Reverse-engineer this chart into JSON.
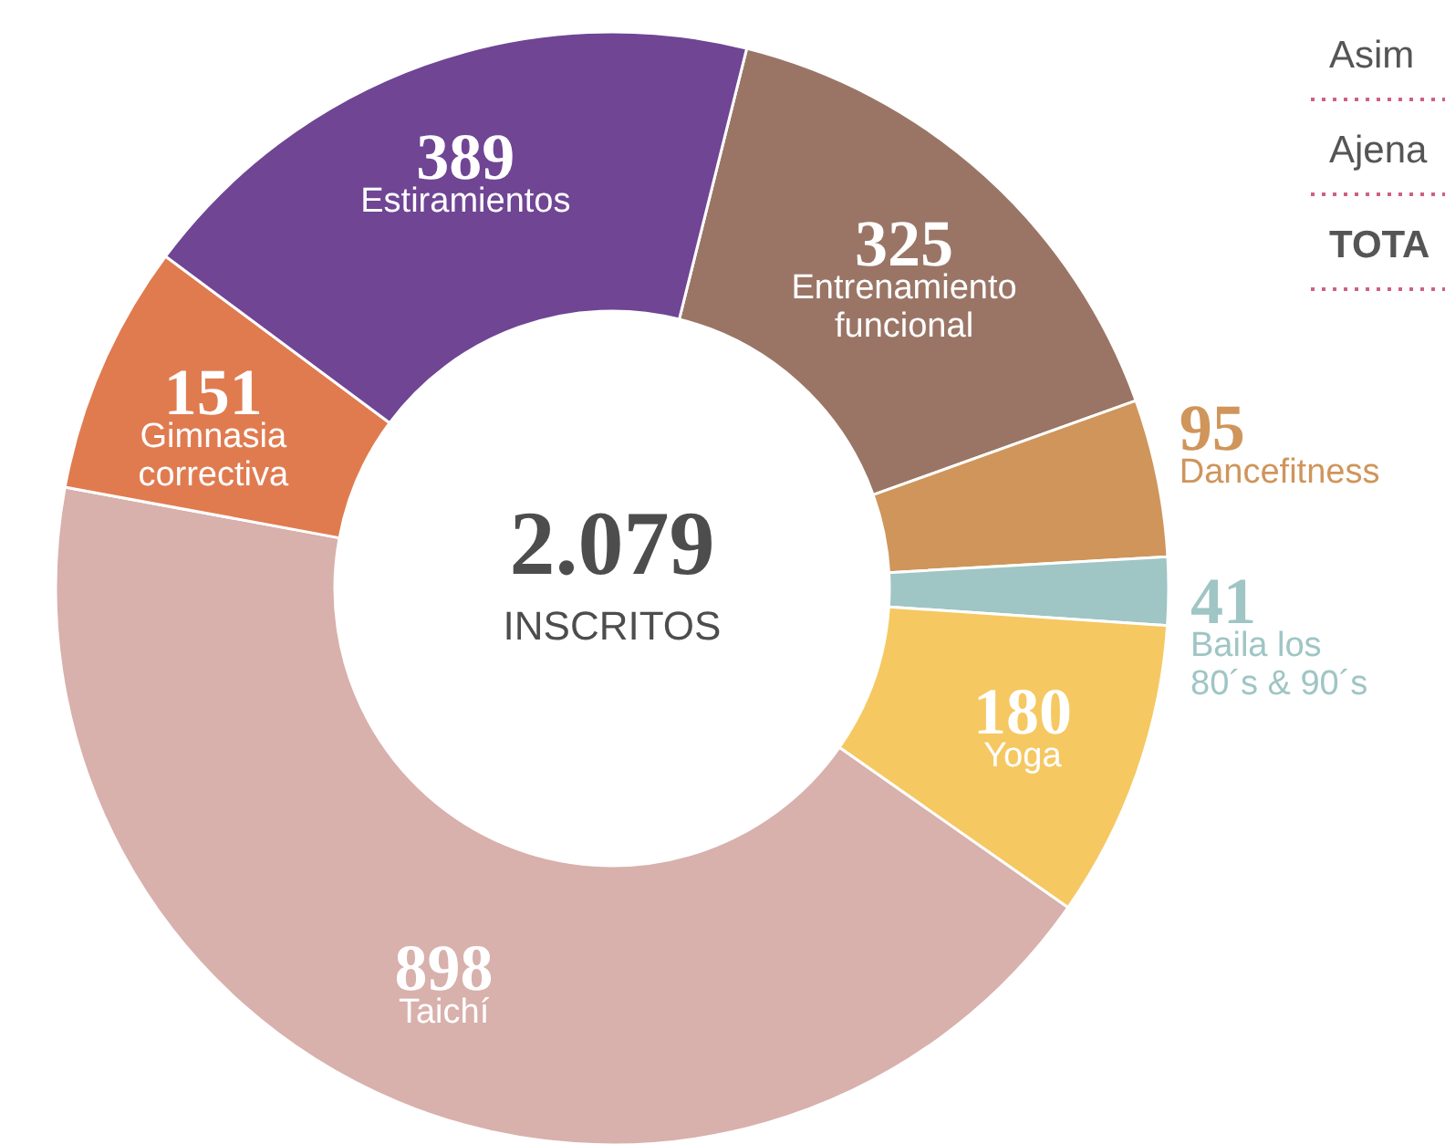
{
  "chart_data": {
    "type": "donut",
    "categories": [
      "Entrenamiento\nfuncional",
      "Dancefitness",
      "Baila los\n80´s & 90´s",
      "Yoga",
      "Taichí",
      "Gimnasia\ncorrectiva",
      "Estiramientos"
    ],
    "values": [
      325,
      95,
      41,
      180,
      898,
      151,
      389
    ],
    "colors": [
      "#9a7566",
      "#cf955a",
      "#9fc5c5",
      "#f5c862",
      "#d8b0ac",
      "#e07b50",
      "#6f4594"
    ],
    "data_labels": true,
    "annotations": [
      "2.079",
      "INSCRITOS",
      "Asim",
      "Ajena",
      "TOTA"
    ]
  }
}
